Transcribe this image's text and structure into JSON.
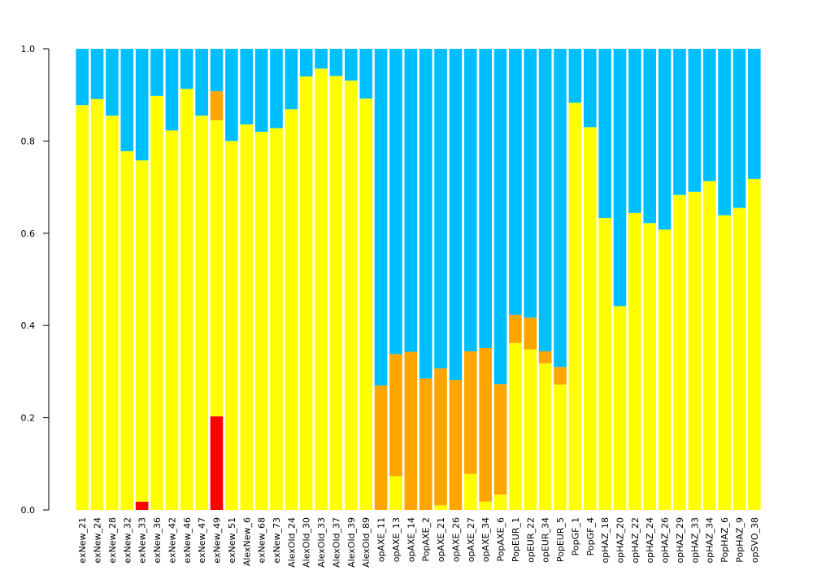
{
  "chart_data": {
    "type": "bar",
    "stacked": true,
    "title": "",
    "xlabel": "",
    "ylabel": "",
    "ylim": [
      0,
      1
    ],
    "y_ticks": [
      "0.0",
      "0.2",
      "0.4",
      "0.6",
      "0.8",
      "1.0"
    ],
    "grid": false,
    "legend": "none",
    "categories": [
      "exNew_21",
      "exNew_24",
      "exNew_28",
      "exNew_32",
      "exNew_33",
      "exNew_36",
      "exNew_42",
      "exNew_46",
      "exNew_47",
      "exNew_49",
      "exNew_51",
      "AlexNew_6",
      "exNew_68",
      "exNew_73",
      "AlexOld_24",
      "AlexOld_30",
      "AlexOld_33",
      "AlexOld_37",
      "AlexOld_39",
      "AlexOld_89",
      "opAXE_11",
      "opAXE_13",
      "opAXE_14",
      "PopAXE_2",
      "opAXE_21",
      "opAXE_26",
      "opAXE_27",
      "opAXE_34",
      "PopAXE_6",
      "PopEUR_1",
      "opEUR_22",
      "opEUR_34",
      "PopEUR_5",
      "PopGF_1",
      "PopGF_4",
      "opHAZ_18",
      "opHAZ_20",
      "opHAZ_22",
      "opHAZ_24",
      "opHAZ_26",
      "opHAZ_29",
      "opHAZ_33",
      "opHAZ_34",
      "PopHAZ_6",
      "PopHAZ_9",
      "opSVO_38"
    ],
    "series": [
      {
        "color": "#ff0000",
        "values": [
          0,
          0,
          0,
          0,
          0.018,
          0,
          0,
          0,
          0,
          0.203,
          0,
          0,
          0,
          0,
          0,
          0,
          0,
          0,
          0,
          0,
          0,
          0,
          0,
          0,
          0,
          0,
          0,
          0,
          0,
          0,
          0,
          0,
          0,
          0,
          0,
          0,
          0,
          0,
          0,
          0,
          0,
          0,
          0,
          0,
          0,
          0
        ]
      },
      {
        "color": "#ffff00",
        "values": [
          0.878,
          0.891,
          0.855,
          0.778,
          0.74,
          0.898,
          0.823,
          0.913,
          0.855,
          0.642,
          0.8,
          0.836,
          0.82,
          0.828,
          0.869,
          0.94,
          0.957,
          0.941,
          0.931,
          0.892,
          0,
          0.073,
          0,
          0,
          0.01,
          0,
          0.078,
          0.018,
          0.033,
          0.362,
          0.348,
          0.318,
          0.272,
          0.883,
          0.83,
          0.633,
          0.442,
          0.644,
          0.622,
          0.608,
          0.683,
          0.69,
          0.713,
          0.639,
          0.655,
          0.718
        ]
      },
      {
        "color": "#ffa500",
        "values": [
          0,
          0,
          0,
          0,
          0,
          0,
          0,
          0,
          0,
          0.063,
          0,
          0,
          0,
          0,
          0,
          0,
          0,
          0,
          0,
          0,
          0.27,
          0.265,
          0.343,
          0.285,
          0.297,
          0.282,
          0.266,
          0.333,
          0.24,
          0.061,
          0.069,
          0.026,
          0.038,
          0,
          0,
          0,
          0,
          0,
          0,
          0,
          0,
          0,
          0,
          0,
          0,
          0
        ]
      },
      {
        "color": "#00bfff",
        "values": [
          0.122,
          0.109,
          0.145,
          0.222,
          0.242,
          0.102,
          0.177,
          0.087,
          0.145,
          0.092,
          0.2,
          0.164,
          0.18,
          0.172,
          0.131,
          0.06,
          0.043,
          0.059,
          0.069,
          0.108,
          0.73,
          0.662,
          0.657,
          0.715,
          0.693,
          0.718,
          0.656,
          0.649,
          0.727,
          0.577,
          0.583,
          0.656,
          0.69,
          0.117,
          0.17,
          0.367,
          0.558,
          0.356,
          0.378,
          0.392,
          0.317,
          0.31,
          0.287,
          0.361,
          0.345,
          0.282
        ]
      }
    ]
  }
}
